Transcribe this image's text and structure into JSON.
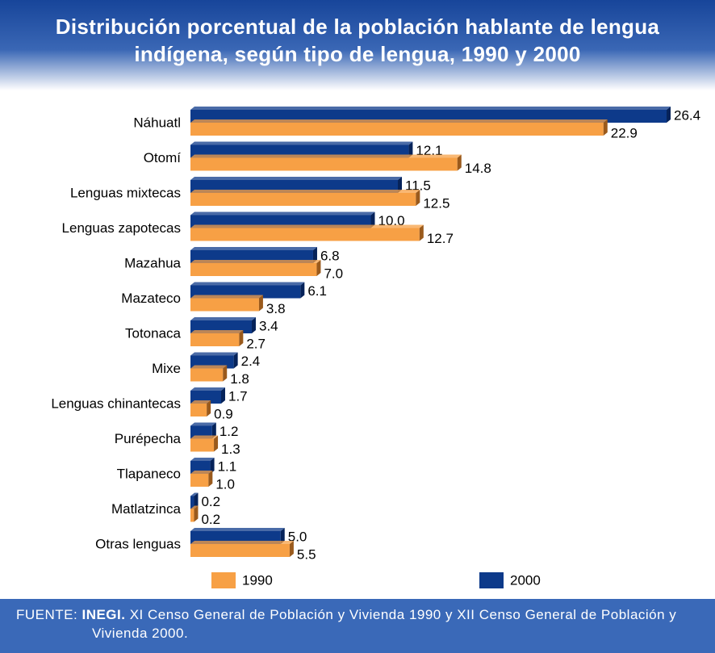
{
  "chart_data": {
    "type": "bar",
    "orientation": "horizontal",
    "title": "Distribución porcentual de la población hablante de lengua indígena, según tipo de lengua, 1990 y 2000",
    "categories": [
      "Náhuatl",
      "Otomí",
      "Lenguas mixtecas",
      "Lenguas zapotecas",
      "Mazahua",
      "Mazateco",
      "Totonaca",
      "Mixe",
      "Lenguas chinantecas",
      "Purépecha",
      "Tlapaneco",
      "Matlatzinca",
      "Otras lenguas"
    ],
    "series": [
      {
        "name": "2000",
        "color": "#0d3a8a",
        "values": [
          26.4,
          12.1,
          11.5,
          10.0,
          6.8,
          6.1,
          3.4,
          2.4,
          1.7,
          1.2,
          1.1,
          0.2,
          5.0
        ],
        "value_labels": [
          "26.4",
          "12.1",
          "11.5",
          "10.0",
          "6.8",
          "6.1",
          "3.4",
          "2.4",
          "1.7",
          "1.2",
          "1.1",
          "0.2",
          "5.0"
        ]
      },
      {
        "name": "1990",
        "color": "#f7a045",
        "values": [
          22.9,
          14.8,
          12.5,
          12.7,
          7.0,
          3.8,
          2.7,
          1.8,
          0.9,
          1.3,
          1.0,
          0.2,
          5.5
        ],
        "value_labels": [
          "22.9",
          "14.8",
          "12.5",
          "12.7",
          "7.0",
          "3.8",
          "2.7",
          "1.8",
          "0.9",
          "1.3",
          "1.0",
          "0.2",
          "5.5"
        ]
      }
    ],
    "source": {
      "label": "FUENTE:",
      "org": "INEGI.",
      "text": "XI Censo General de Población y Vivienda 1990 y XII Censo General de Población y Vivienda 2000."
    }
  }
}
